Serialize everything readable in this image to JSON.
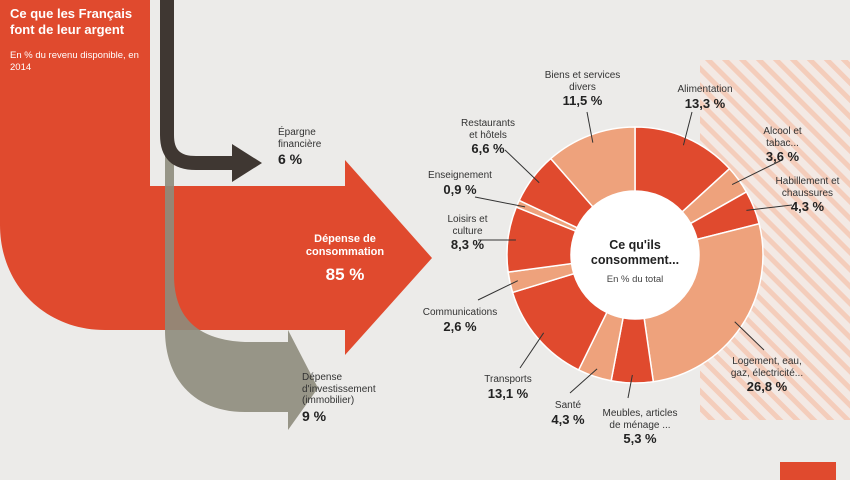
{
  "header": {
    "title": "Ce que les Français font de leur argent",
    "subtitle": "En % du revenu disponible, en 2014"
  },
  "flows": {
    "epargne": {
      "label": "Épargne financière",
      "value": "6 %"
    },
    "consommation": {
      "label": "Dépense de consommation",
      "value": "85 %"
    },
    "investissement": {
      "label": "Dépense d'investissement (immobilier)",
      "value": "9 %"
    }
  },
  "donut": {
    "title": "Ce qu'ils consomment...",
    "subtitle": "En % du total"
  },
  "labels": [
    {
      "label": "Alimentation",
      "value": "13,3 %"
    },
    {
      "label": "Alcool et tabac...",
      "value": "3,6 %"
    },
    {
      "label": "Habillement et chaussures",
      "value": "4,3 %"
    },
    {
      "label": "Logement, eau, gaz, électricité...",
      "value": "26,8 %"
    },
    {
      "label": "Meubles, articles de ménage ...",
      "value": "5,3 %"
    },
    {
      "label": "Santé",
      "value": "4,3 %"
    },
    {
      "label": "Transports",
      "value": "13,1 %"
    },
    {
      "label": "Communications",
      "value": "2,6 %"
    },
    {
      "label": "Loisirs et culture",
      "value": "8,3 %"
    },
    {
      "label": "Enseignement",
      "value": "0,9 %"
    },
    {
      "label": "Restaurants et hôtels",
      "value": "6,6 %"
    },
    {
      "label": "Biens et services divers",
      "value": "11,5 %"
    }
  ],
  "chart_data": [
    {
      "type": "pie",
      "categories": [
        "Alimentation",
        "Alcool et tabac...",
        "Habillement et chaussures",
        "Logement, eau, gaz, électricité...",
        "Meubles, articles de ménage ...",
        "Santé",
        "Transports",
        "Communications",
        "Loisirs et culture",
        "Enseignement",
        "Restaurants et hôtels",
        "Biens et services divers"
      ],
      "values": [
        13.3,
        3.6,
        4.3,
        26.8,
        5.3,
        4.3,
        13.1,
        2.6,
        8.3,
        0.9,
        6.6,
        11.5
      ],
      "colors": [
        "#e04a2e",
        "#eea27c",
        "#e04a2e",
        "#eea27c",
        "#e04a2e",
        "#eea27c",
        "#e04a2e",
        "#eea27c",
        "#e04a2e",
        "#eea27c",
        "#e04a2e",
        "#eea27c"
      ],
      "title": "Ce qu'ils consomment...",
      "subtitle": "En % du total"
    },
    {
      "type": "flow",
      "title": "Ce que les Français font de leur argent",
      "subtitle": "En % du revenu disponible, en 2014",
      "categories": [
        "Épargne financière",
        "Dépense de consommation",
        "Dépense d'investissement (immobilier)"
      ],
      "values": [
        6,
        85,
        9
      ]
    }
  ],
  "colors": {
    "accent": "#e04a2e",
    "light": "#eea27c",
    "dark_flow": "#3f3732",
    "grey_flow": "#8e8c7c",
    "background": "#ecebe9"
  }
}
